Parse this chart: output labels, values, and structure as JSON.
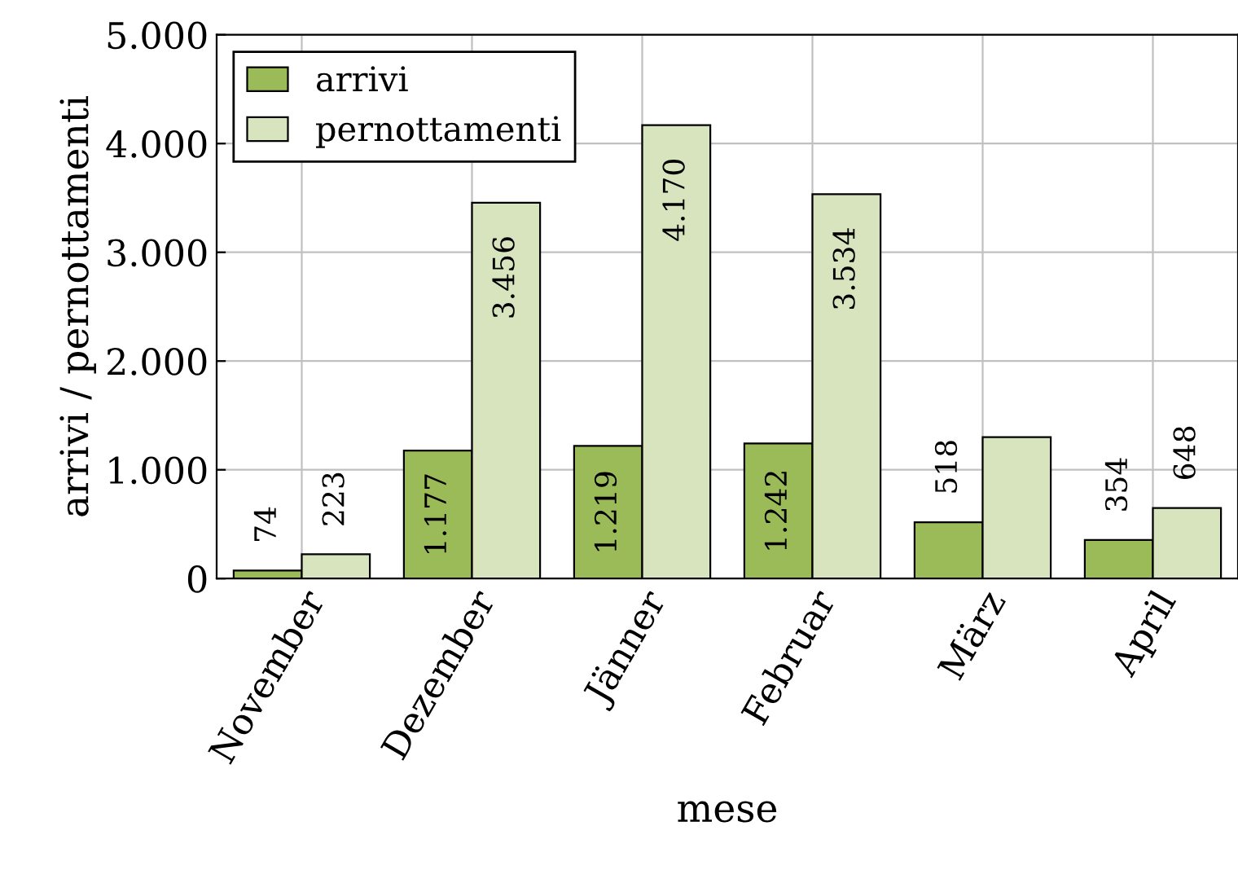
{
  "chart_data": {
    "type": "bar",
    "xlabel": "mese",
    "ylabel": "arrivi / pernottamenti",
    "categories": [
      "November",
      "Dezember",
      "Jänner",
      "Februar",
      "März",
      "April"
    ],
    "series": [
      {
        "name": "arrivi",
        "color": "#9bbb59",
        "values": [
          74,
          1177,
          1219,
          1242,
          518,
          354
        ],
        "value_labels": [
          "74",
          "1.177",
          "1.219",
          "1.242",
          "518",
          "354"
        ]
      },
      {
        "name": "pernottamenti",
        "color": "#d7e4bd",
        "values": [
          223,
          3456,
          4170,
          3534,
          1300,
          648
        ],
        "value_labels": [
          "223",
          "3.456",
          "4.170",
          "3.534",
          null,
          "648"
        ]
      }
    ],
    "ylim": [
      0,
      5000
    ],
    "yticks": [
      {
        "value": 0,
        "label": "0"
      },
      {
        "value": 1000,
        "label": "1.000"
      },
      {
        "value": 2000,
        "label": "2.000"
      },
      {
        "value": 3000,
        "label": "3.000"
      },
      {
        "value": 4000,
        "label": "4.000"
      },
      {
        "value": 5000,
        "label": "5.000"
      }
    ],
    "grid": true,
    "legend": "top left"
  }
}
